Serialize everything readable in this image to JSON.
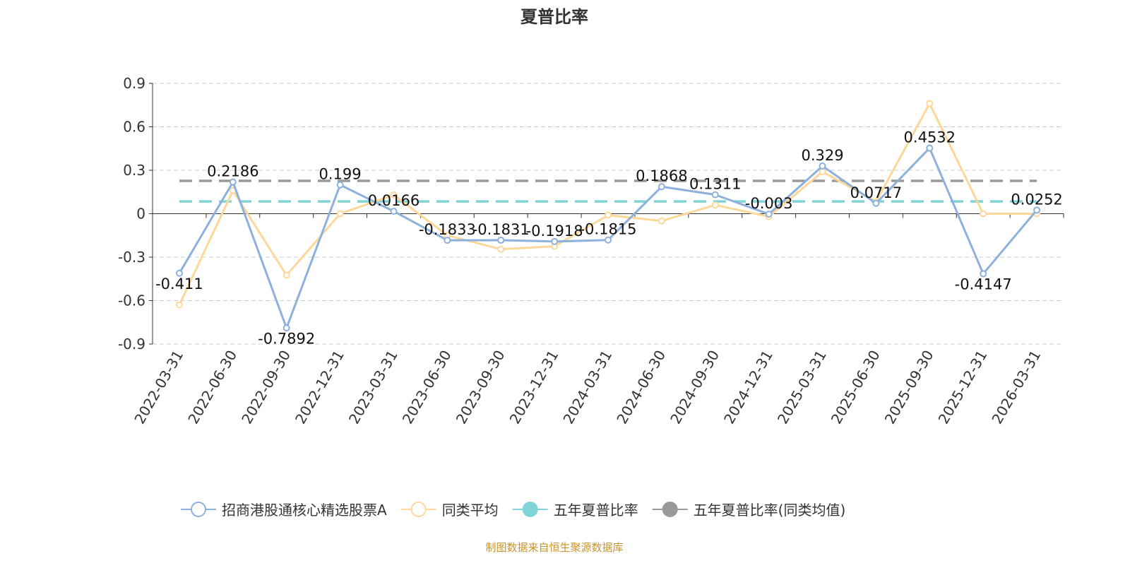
{
  "chart_data": {
    "type": "line",
    "title": "夏普比率",
    "categories": [
      "2022-03-31",
      "2022-06-30",
      "2022-09-30",
      "2022-12-31",
      "2023-03-31",
      "2023-06-30",
      "2023-09-30",
      "2023-12-31",
      "2024-03-31",
      "2024-06-30",
      "2024-09-30",
      "2024-12-31",
      "2025-03-31",
      "2025-06-30",
      "2025-09-30",
      "2025-12-31",
      "2026-03-31"
    ],
    "ylim": [
      -0.9,
      0.9
    ],
    "yticks": [
      "0.9",
      "0.6",
      "0.3",
      "0",
      "-0.3",
      "-0.6",
      "-0.9"
    ],
    "series": [
      {
        "name": "招商港股通核心精选股票A",
        "color": "#8eb0dc",
        "values": [
          -0.411,
          0.2186,
          -0.7892,
          0.199,
          0.0166,
          -0.1833,
          -0.1831,
          -0.1918,
          -0.1815,
          0.1868,
          0.1311,
          -0.003,
          0.329,
          0.0717,
          0.4532,
          -0.4147,
          0.0252
        ],
        "labels": [
          "-0.411",
          "0.2186",
          "-0.7892",
          "0.199",
          "0.0166",
          "-0.1833",
          "-0.1831",
          "-0.1918",
          "-0.1815",
          "0.1868",
          "0.1311",
          "-0.003",
          "0.329",
          "0.0717",
          "0.4532",
          "-0.4147",
          "0.0252"
        ]
      },
      {
        "name": "同类平均",
        "color": "#fdd89a",
        "values": [
          -0.63,
          0.16,
          -0.425,
          0.0,
          0.13,
          -0.15,
          -0.245,
          -0.225,
          -0.01,
          -0.05,
          0.06,
          -0.02,
          0.29,
          0.084,
          0.76,
          0.0,
          0.0
        ]
      },
      {
        "name": "五年夏普比率",
        "color": "#80d4d8",
        "value": 0.085
      },
      {
        "name": "五年夏普比率(同类均值)",
        "color": "#999999",
        "value": 0.227
      }
    ]
  },
  "source": "制图数据来自恒生聚源数据库"
}
